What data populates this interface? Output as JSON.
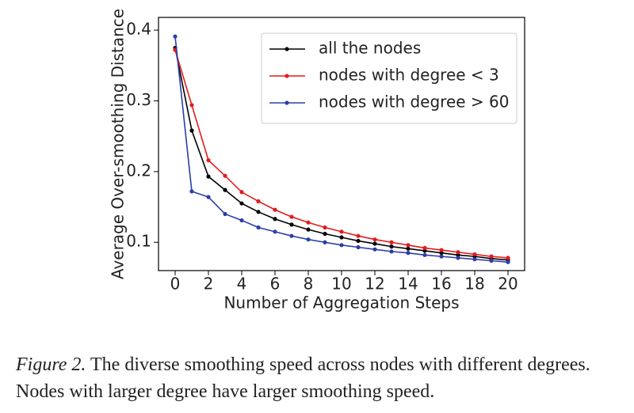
{
  "chart_data": {
    "type": "line",
    "x_label": "Number of Aggregation Steps",
    "y_label": "Average Over-smoothing Distance",
    "x": [
      0,
      1,
      2,
      3,
      4,
      5,
      6,
      7,
      8,
      9,
      10,
      11,
      12,
      13,
      14,
      15,
      16,
      17,
      18,
      19,
      20
    ],
    "series": [
      {
        "name": "all the nodes",
        "color": "#000000",
        "values": [
          0.375,
          0.258,
          0.193,
          0.174,
          0.155,
          0.143,
          0.133,
          0.125,
          0.118,
          0.112,
          0.107,
          0.102,
          0.098,
          0.094,
          0.091,
          0.088,
          0.085,
          0.082,
          0.08,
          0.077,
          0.075
        ]
      },
      {
        "name": "nodes with degree < 3",
        "color": "#e41a1c",
        "values": [
          0.372,
          0.294,
          0.216,
          0.194,
          0.171,
          0.158,
          0.146,
          0.136,
          0.128,
          0.121,
          0.115,
          0.109,
          0.104,
          0.1,
          0.096,
          0.092,
          0.089,
          0.086,
          0.083,
          0.08,
          0.078
        ]
      },
      {
        "name": "nodes with degree > 60",
        "color": "#2b3ea8",
        "values": [
          0.391,
          0.172,
          0.164,
          0.14,
          0.131,
          0.121,
          0.115,
          0.109,
          0.104,
          0.1,
          0.096,
          0.093,
          0.09,
          0.087,
          0.085,
          0.082,
          0.08,
          0.078,
          0.076,
          0.074,
          0.072
        ]
      }
    ],
    "xlim": [
      -1,
      21
    ],
    "xticks": [
      0,
      2,
      4,
      6,
      8,
      10,
      12,
      14,
      16,
      18,
      20
    ],
    "ylim": [
      0.06,
      0.418
    ],
    "yticks": [
      0.1,
      0.2,
      0.3,
      0.4
    ],
    "legend": "upper right"
  },
  "caption": {
    "label": "Figure 2.",
    "text": "The diverse smoothing speed across nodes with different degrees. Nodes with larger degree have larger smoothing speed."
  }
}
